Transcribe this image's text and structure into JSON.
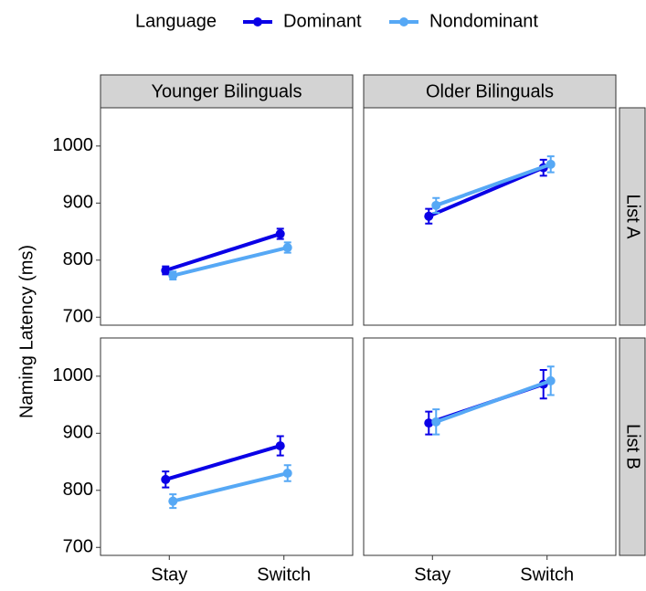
{
  "legend": {
    "title": "Language",
    "series": [
      {
        "name": "Dominant",
        "color": "#0a00e6"
      },
      {
        "name": "Nondominant",
        "color": "#56a8f5"
      }
    ]
  },
  "y_label": "Naming Latency (ms)",
  "facet_columns": [
    "Younger Bilinguals",
    "Older Bilinguals"
  ],
  "facet_rows": [
    "List A",
    "List B"
  ],
  "categories": [
    "Stay",
    "Switch"
  ],
  "ylim": [
    686,
    1067
  ],
  "yticks": [
    700,
    800,
    900,
    1000
  ],
  "chart_data": [
    {
      "type": "line",
      "series": [
        {
          "values": [
            782,
            846
          ],
          "errors": [
            7,
            9
          ]
        },
        {
          "values": [
            773,
            822
          ],
          "errors": [
            7,
            9
          ]
        }
      ]
    },
    {
      "type": "line",
      "series": [
        {
          "values": [
            877,
            962
          ],
          "errors": [
            13,
            14
          ]
        },
        {
          "values": [
            896,
            968
          ],
          "errors": [
            13,
            14
          ]
        }
      ]
    },
    {
      "type": "line",
      "series": [
        {
          "values": [
            819,
            878
          ],
          "errors": [
            14,
            17
          ]
        },
        {
          "values": [
            781,
            830
          ],
          "errors": [
            12,
            14
          ]
        }
      ]
    },
    {
      "type": "line",
      "series": [
        {
          "values": [
            918,
            986
          ],
          "errors": [
            20,
            25
          ]
        },
        {
          "values": [
            920,
            992
          ],
          "errors": [
            22,
            25
          ]
        }
      ]
    }
  ]
}
